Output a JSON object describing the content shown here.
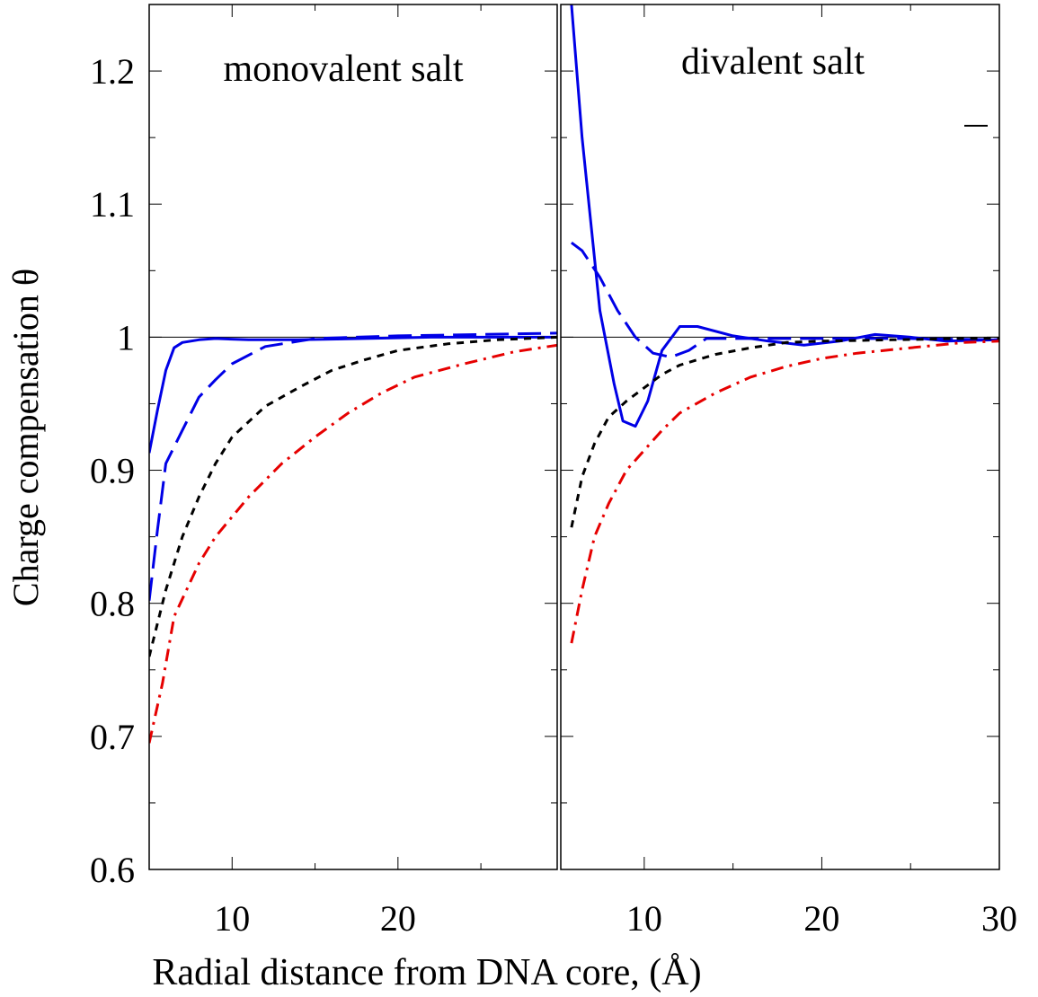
{
  "chart_data": {
    "type": "line",
    "ylabel": "Charge compensation θ",
    "xlabel": "Radial distance from DNA core, (Å)",
    "ylim": [
      0.6,
      1.25
    ],
    "yticks": [
      0.6,
      0.7,
      0.8,
      0.9,
      1,
      1.1,
      1.2
    ],
    "ytick_labels": [
      "0.6",
      "0.7",
      "0.8",
      "0.9",
      "1",
      "1.1",
      "1.2"
    ],
    "reference_line": 1.0,
    "grid": false,
    "panels": [
      {
        "title": "monovalent salt",
        "xlim": [
          5,
          29.6
        ],
        "xticks": [
          10,
          20
        ],
        "xtick_labels": [
          "10",
          "20"
        ],
        "series": [
          {
            "color": "#0000e6",
            "dash": "solid",
            "points": [
              [
                5,
                0.913
              ],
              [
                5.5,
                0.945
              ],
              [
                6,
                0.975
              ],
              [
                6.5,
                0.992
              ],
              [
                7,
                0.996
              ],
              [
                8,
                0.998
              ],
              [
                9,
                0.999
              ],
              [
                11,
                0.998
              ],
              [
                14,
                0.998
              ],
              [
                18,
                0.999
              ],
              [
                22,
                1.0
              ],
              [
                29.6,
                1.0
              ]
            ]
          },
          {
            "color": "#0000e6",
            "dash": "longdash",
            "points": [
              [
                5,
                0.802
              ],
              [
                5.5,
                0.855
              ],
              [
                6,
                0.905
              ],
              [
                7,
                0.93
              ],
              [
                8,
                0.955
              ],
              [
                9,
                0.968
              ],
              [
                10,
                0.98
              ],
              [
                12,
                0.993
              ],
              [
                15,
                0.999
              ],
              [
                20,
                1.001
              ],
              [
                25,
                1.002
              ],
              [
                29.6,
                1.003
              ]
            ]
          },
          {
            "color": "#000000",
            "dash": "shortdash",
            "points": [
              [
                5,
                0.76
              ],
              [
                6,
                0.81
              ],
              [
                7,
                0.85
              ],
              [
                8,
                0.88
              ],
              [
                9,
                0.905
              ],
              [
                10,
                0.925
              ],
              [
                12,
                0.948
              ],
              [
                14,
                0.962
              ],
              [
                16,
                0.975
              ],
              [
                18,
                0.983
              ],
              [
                20,
                0.99
              ],
              [
                23,
                0.995
              ],
              [
                26,
                0.998
              ],
              [
                29.6,
                1.0
              ]
            ]
          },
          {
            "color": "#e60000",
            "dash": "dashdot",
            "points": [
              [
                5,
                0.695
              ],
              [
                5.8,
                0.74
              ],
              [
                6.5,
                0.79
              ],
              [
                8,
                0.83
              ],
              [
                9,
                0.85
              ],
              [
                11,
                0.88
              ],
              [
                13,
                0.905
              ],
              [
                15,
                0.925
              ],
              [
                17,
                0.943
              ],
              [
                19,
                0.958
              ],
              [
                21,
                0.97
              ],
              [
                24,
                0.98
              ],
              [
                27,
                0.989
              ],
              [
                29.6,
                0.994
              ]
            ]
          }
        ]
      },
      {
        "title": "divalent salt",
        "xlim": [
          5.3,
          30
        ],
        "xticks": [
          10,
          20,
          30
        ],
        "xtick_labels": [
          "10",
          "20",
          "30"
        ],
        "series": [
          {
            "color": "#0000e6",
            "dash": "solid",
            "points": [
              [
                5.9,
                1.25
              ],
              [
                6.5,
                1.15
              ],
              [
                7.5,
                1.02
              ],
              [
                8.3,
                0.965
              ],
              [
                8.8,
                0.937
              ],
              [
                9.5,
                0.933
              ],
              [
                10.2,
                0.952
              ],
              [
                11,
                0.99
              ],
              [
                12,
                1.008
              ],
              [
                13,
                1.008
              ],
              [
                15,
                1.001
              ],
              [
                17,
                0.997
              ],
              [
                19,
                0.994
              ],
              [
                21,
                0.997
              ],
              [
                23,
                1.002
              ],
              [
                25,
                1.0
              ],
              [
                27,
                0.997
              ],
              [
                30,
                0.998
              ]
            ]
          },
          {
            "color": "#0000e6",
            "dash": "longdash",
            "points": [
              [
                5.9,
                1.071
              ],
              [
                6.5,
                1.065
              ],
              [
                7.5,
                1.045
              ],
              [
                8.5,
                1.02
              ],
              [
                9.5,
                1.0
              ],
              [
                10.5,
                0.988
              ],
              [
                11.5,
                0.985
              ],
              [
                12.5,
                0.99
              ],
              [
                13.5,
                0.999
              ],
              [
                16,
                0.999
              ],
              [
                20,
                0.999
              ],
              [
                25,
                0.999
              ],
              [
                30,
                0.998
              ]
            ]
          },
          {
            "color": "#000000",
            "dash": "shortdash",
            "points": [
              [
                5.9,
                0.857
              ],
              [
                6.5,
                0.895
              ],
              [
                7.2,
                0.92
              ],
              [
                8,
                0.94
              ],
              [
                9,
                0.952
              ],
              [
                10,
                0.962
              ],
              [
                11,
                0.972
              ],
              [
                12,
                0.979
              ],
              [
                14,
                0.987
              ],
              [
                16,
                0.992
              ],
              [
                18,
                0.996
              ],
              [
                20,
                0.997
              ],
              [
                24,
                0.998
              ],
              [
                28,
                0.999
              ],
              [
                30,
                0.999
              ]
            ]
          },
          {
            "color": "#e60000",
            "dash": "dashdot",
            "points": [
              [
                5.9,
                0.77
              ],
              [
                6.5,
                0.81
              ],
              [
                7.2,
                0.85
              ],
              [
                8,
                0.875
              ],
              [
                9,
                0.9
              ],
              [
                10,
                0.915
              ],
              [
                11,
                0.93
              ],
              [
                12,
                0.943
              ],
              [
                14,
                0.958
              ],
              [
                16,
                0.97
              ],
              [
                18,
                0.978
              ],
              [
                20,
                0.984
              ],
              [
                22,
                0.988
              ],
              [
                25,
                0.992
              ],
              [
                28,
                0.996
              ],
              [
                30,
                0.997
              ]
            ]
          }
        ]
      }
    ]
  }
}
